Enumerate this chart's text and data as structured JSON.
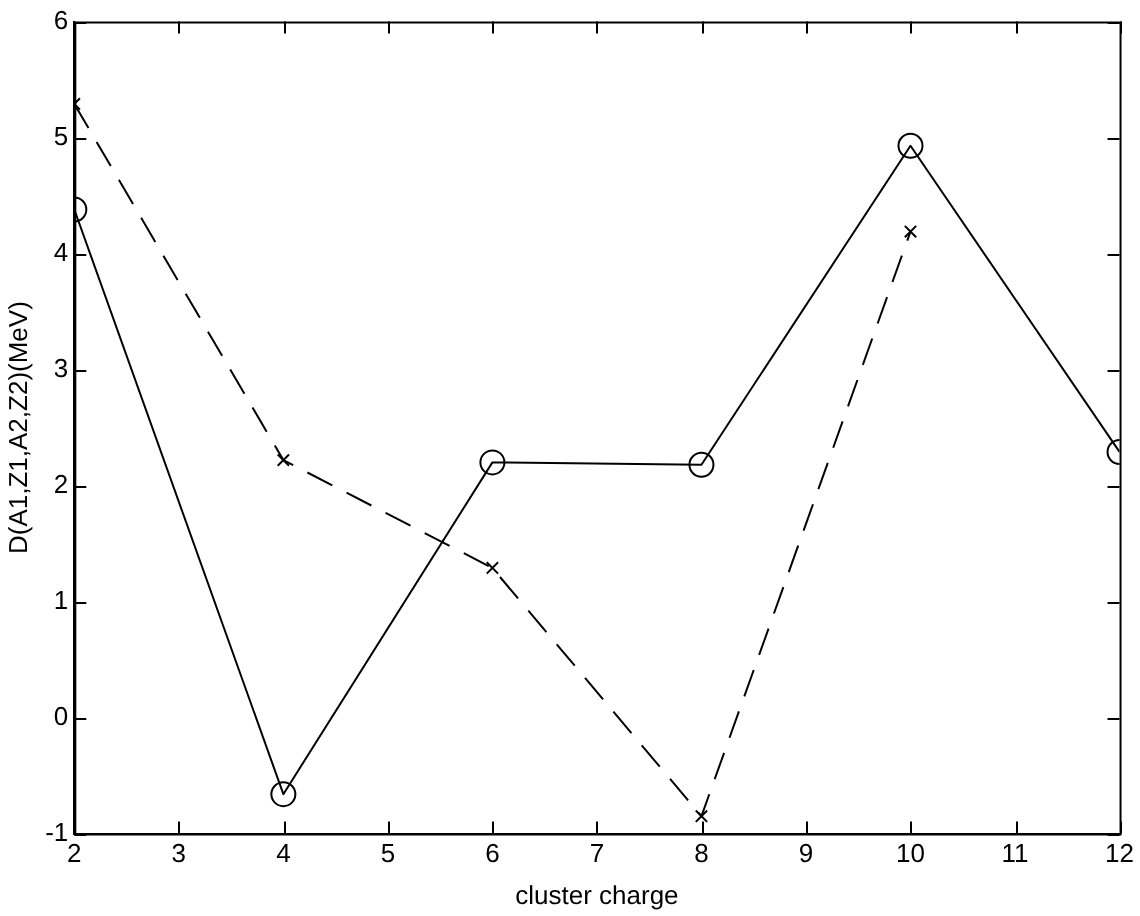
{
  "chart_data": {
    "type": "line",
    "xlabel": "cluster charge",
    "ylabel": "D(A1,Z1,A2,Z2)(MeV)",
    "xlim": [
      2,
      12
    ],
    "xticks": [
      2,
      3,
      4,
      5,
      6,
      7,
      8,
      9,
      10,
      11,
      12
    ],
    "ylim": [
      -1,
      6
    ],
    "yticks": [
      -1,
      0,
      1,
      2,
      3,
      4,
      5,
      6
    ],
    "grid": false,
    "legend": false,
    "series": [
      {
        "color": "#000000",
        "marker": "circle",
        "line_style": "solid",
        "x": [
          2,
          4,
          6,
          8,
          10,
          12
        ],
        "values": [
          4.38,
          -0.66,
          2.2,
          2.18,
          4.93,
          2.29
        ]
      },
      {
        "color": "#000000",
        "marker": "cross",
        "line_style": "dashed",
        "x": [
          2,
          4,
          6,
          8,
          10
        ],
        "values": [
          5.29,
          2.22,
          1.29,
          -0.85,
          4.19
        ]
      }
    ]
  }
}
